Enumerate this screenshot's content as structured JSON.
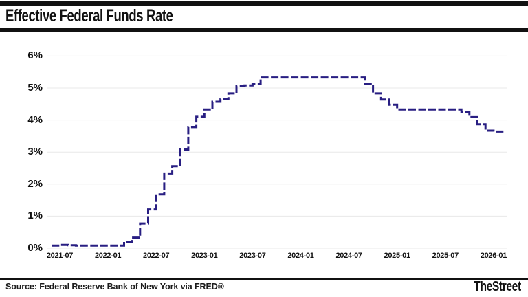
{
  "header": {
    "title": "Effective Federal Funds Rate"
  },
  "footer": {
    "source": "Source: Federal Reserve Bank of New York via FRED®",
    "brand": "TheStreet"
  },
  "chart_data": {
    "type": "line",
    "subtype": "step-after",
    "line_style": "dashed",
    "title": "Effective Federal Funds Rate",
    "xlabel": "",
    "ylabel": "",
    "ylim": [
      0,
      6
    ],
    "grid": "horizontal",
    "legend": "none",
    "colors": {
      "line": "#281e82",
      "grid": "#e8e8e8",
      "text": "#111111",
      "bars": "#111111",
      "background": "#ffffff"
    },
    "yticks": [
      "0%",
      "1%",
      "2%",
      "3%",
      "4%",
      "5%",
      "6%"
    ],
    "xticks": [
      "2021-07",
      "2022-01",
      "2022-07",
      "2023-01",
      "2023-07",
      "2024-01",
      "2024-07",
      "2025-01",
      "2025-07",
      "2026-01"
    ],
    "x": [
      "2021-06",
      "2021-07",
      "2021-08",
      "2021-09",
      "2021-10",
      "2021-11",
      "2021-12",
      "2022-01",
      "2022-02",
      "2022-03",
      "2022-04",
      "2022-05",
      "2022-06",
      "2022-07",
      "2022-08",
      "2022-09",
      "2022-10",
      "2022-11",
      "2022-12",
      "2023-01",
      "2023-02",
      "2023-03",
      "2023-04",
      "2023-05",
      "2023-06",
      "2023-07",
      "2023-08",
      "2023-09",
      "2023-10",
      "2023-11",
      "2023-12",
      "2024-01",
      "2024-02",
      "2024-03",
      "2024-04",
      "2024-05",
      "2024-06",
      "2024-07",
      "2024-08",
      "2024-09",
      "2024-10",
      "2024-11",
      "2024-12",
      "2025-01",
      "2025-02",
      "2025-03",
      "2025-04",
      "2025-05",
      "2025-06",
      "2025-07",
      "2025-08",
      "2025-09",
      "2025-10",
      "2025-11",
      "2025-12",
      "2026-01",
      "2026-02"
    ],
    "values": [
      0.08,
      0.1,
      0.09,
      0.08,
      0.08,
      0.08,
      0.08,
      0.08,
      0.08,
      0.2,
      0.33,
      0.77,
      1.21,
      1.68,
      2.33,
      2.56,
      3.08,
      3.78,
      4.1,
      4.33,
      4.57,
      4.65,
      4.83,
      5.06,
      5.08,
      5.12,
      5.33,
      5.33,
      5.33,
      5.33,
      5.33,
      5.33,
      5.33,
      5.33,
      5.33,
      5.33,
      5.33,
      5.33,
      5.33,
      5.13,
      4.83,
      4.64,
      4.48,
      4.33,
      4.33,
      4.33,
      4.33,
      4.33,
      4.33,
      4.33,
      4.33,
      4.24,
      4.09,
      3.87,
      3.67,
      3.64,
      3.64
    ]
  }
}
